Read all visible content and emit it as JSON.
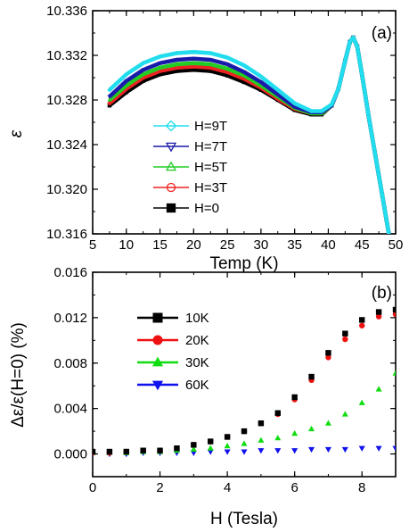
{
  "chart_data": [
    {
      "panel": "(a)",
      "type": "line",
      "xlabel": "Temp (K)",
      "ylabel": "ε",
      "xlim": [
        5,
        50
      ],
      "ylim": [
        10.316,
        10.336
      ],
      "xticks": [
        "5",
        "10",
        "15",
        "20",
        "25",
        "30",
        "35",
        "40",
        "45",
        "50"
      ],
      "yticks": [
        "10.316",
        "10.320",
        "10.324",
        "10.328",
        "10.332",
        "10.336"
      ],
      "grid": false,
      "legend_position": "left, lower-middle",
      "series": [
        {
          "name": "H=9T",
          "color": "#22ddee",
          "marker": "diamond",
          "x": [
            7.5,
            10,
            12.5,
            15,
            17.5,
            20,
            22.5,
            25,
            27.5,
            30,
            32.5,
            35,
            37.5,
            39,
            40.5,
            41.5,
            42.5,
            43.2,
            43.7,
            44.3,
            45,
            46,
            47,
            48,
            49
          ],
          "y": [
            10.3289,
            10.3303,
            10.3313,
            10.3319,
            10.3322,
            10.3323,
            10.3322,
            10.3318,
            10.3311,
            10.3301,
            10.3289,
            10.3277,
            10.327,
            10.327,
            10.3276,
            10.329,
            10.3315,
            10.3332,
            10.3336,
            10.3328,
            10.3303,
            10.3265,
            10.323,
            10.3195,
            10.316
          ]
        },
        {
          "name": "H=7T",
          "color": "#1a1aaa",
          "marker": "triangle-down",
          "x": [
            7.5,
            10,
            12.5,
            15,
            17.5,
            20,
            22.5,
            25,
            27.5,
            30,
            32.5,
            35,
            37.5,
            39,
            40.5,
            41.5,
            42.5,
            43.2,
            43.7,
            44.3,
            45,
            46,
            47,
            48,
            49
          ],
          "y": [
            10.3283,
            10.3297,
            10.3307,
            10.3313,
            10.3316,
            10.3317,
            10.3316,
            10.3312,
            10.3305,
            10.3296,
            10.3285,
            10.3274,
            10.3269,
            10.3269,
            10.3275,
            10.329,
            10.3315,
            10.3332,
            10.3336,
            10.3328,
            10.3303,
            10.3265,
            10.323,
            10.3195,
            10.316
          ]
        },
        {
          "name": "H=5T",
          "color": "#22cc22",
          "marker": "triangle-up",
          "x": [
            7.5,
            10,
            12.5,
            15,
            17.5,
            20,
            22.5,
            25,
            27.5,
            30,
            32.5,
            35,
            37.5,
            39,
            40.5,
            41.5,
            42.5,
            43.2,
            43.7,
            44.3,
            45,
            46,
            47,
            48,
            49
          ],
          "y": [
            10.328,
            10.3293,
            10.3303,
            10.3309,
            10.3312,
            10.3313,
            10.3312,
            10.3308,
            10.3302,
            10.3293,
            10.3283,
            10.3273,
            10.3268,
            10.3268,
            10.3275,
            10.329,
            10.3315,
            10.3332,
            10.3336,
            10.3328,
            10.3303,
            10.3265,
            10.323,
            10.3195,
            10.316
          ]
        },
        {
          "name": "H=3T",
          "color": "#ee2222",
          "marker": "circle",
          "x": [
            7.5,
            10,
            12.5,
            15,
            17.5,
            20,
            22.5,
            25,
            27.5,
            30,
            32.5,
            35,
            37.5,
            39,
            40.5,
            41.5,
            42.5,
            43.2,
            43.7,
            44.3,
            45,
            46,
            47,
            48,
            49
          ],
          "y": [
            10.3277,
            10.329,
            10.33,
            10.3306,
            10.3309,
            10.331,
            10.3309,
            10.3305,
            10.3299,
            10.3291,
            10.3281,
            10.3272,
            10.3268,
            10.3268,
            10.3275,
            10.329,
            10.3315,
            10.3332,
            10.3336,
            10.3328,
            10.3303,
            10.3265,
            10.323,
            10.3195,
            10.316
          ]
        },
        {
          "name": "H=0",
          "color": "#000000",
          "marker": "square",
          "x": [
            7.5,
            10,
            12.5,
            15,
            17.5,
            20,
            22.5,
            25,
            27.5,
            30,
            32.5,
            35,
            37.5,
            39,
            40.5,
            41.5,
            42.5,
            43.2,
            43.7,
            44.3,
            45,
            46,
            47,
            48,
            49
          ],
          "y": [
            10.3275,
            10.3287,
            10.3297,
            10.3303,
            10.3306,
            10.3307,
            10.3306,
            10.3302,
            10.3296,
            10.3289,
            10.328,
            10.3271,
            10.3267,
            10.3267,
            10.3275,
            10.329,
            10.3315,
            10.3332,
            10.3336,
            10.3328,
            10.3303,
            10.3265,
            10.323,
            10.3195,
            10.316
          ]
        }
      ]
    },
    {
      "panel": "(b)",
      "type": "scatter",
      "xlabel": "H (Tesla)",
      "ylabel": "Δε/ε(H=0)   (%)",
      "xlim": [
        0,
        9
      ],
      "ylim": [
        -0.002,
        0.016
      ],
      "xticks": [
        "0",
        "2",
        "4",
        "6",
        "8"
      ],
      "yticks": [
        "0.000",
        "0.004",
        "0.008",
        "0.012",
        "0.016"
      ],
      "grid": false,
      "legend_position": "top-left",
      "series": [
        {
          "name": "10K",
          "color": "#000000",
          "marker": "square",
          "x": [
            0,
            0.5,
            1,
            1.5,
            2,
            2.5,
            3,
            3.5,
            4,
            4.5,
            5,
            5.5,
            6,
            6.5,
            7,
            7.5,
            8,
            8.5,
            9
          ],
          "y": [
            0.0002,
            0.0002,
            0.0002,
            0.0003,
            0.0003,
            0.0005,
            0.0008,
            0.0011,
            0.0015,
            0.002,
            0.0027,
            0.0036,
            0.005,
            0.0068,
            0.0089,
            0.0106,
            0.0118,
            0.0125,
            0.0127
          ]
        },
        {
          "name": "20K",
          "color": "#ee1111",
          "marker": "circle",
          "x": [
            0,
            0.5,
            1,
            1.5,
            2,
            2.5,
            3,
            3.5,
            4,
            4.5,
            5,
            5.5,
            6,
            6.5,
            7,
            7.5,
            8,
            8.5,
            9
          ],
          "y": [
            0.0001,
            0.0001,
            0.0002,
            0.0003,
            0.0003,
            0.0005,
            0.0008,
            0.0011,
            0.0015,
            0.002,
            0.0027,
            0.0035,
            0.0048,
            0.0065,
            0.0085,
            0.0101,
            0.0113,
            0.0121,
            0.0123
          ]
        },
        {
          "name": "30K",
          "color": "#11dd11",
          "marker": "triangle-up",
          "x": [
            0,
            0.5,
            1,
            1.5,
            2,
            2.5,
            3,
            3.5,
            4,
            4.5,
            5,
            5.5,
            6,
            6.5,
            7,
            7.5,
            8,
            8.5,
            9
          ],
          "y": [
            0.0001,
            0.0001,
            0.0001,
            0.0002,
            0.0002,
            0.0003,
            0.0004,
            0.0005,
            0.0007,
            0.0009,
            0.0012,
            0.0014,
            0.0018,
            0.0022,
            0.0027,
            0.0035,
            0.0045,
            0.0057,
            0.0071
          ]
        },
        {
          "name": "60K",
          "color": "#1111ee",
          "marker": "triangle-down",
          "x": [
            0,
            0.5,
            1,
            1.5,
            2,
            2.5,
            3,
            3.5,
            4,
            4.5,
            5,
            5.5,
            6,
            6.5,
            7,
            7.5,
            8,
            8.5,
            9
          ],
          "y": [
            0.0,
            0.0,
            0.0,
            0.0001,
            0.0001,
            0.0001,
            0.0001,
            0.0002,
            0.0002,
            0.0002,
            0.0003,
            0.0003,
            0.0003,
            0.0004,
            0.0004,
            0.0004,
            0.0005,
            0.0005,
            0.0005
          ]
        }
      ]
    }
  ]
}
